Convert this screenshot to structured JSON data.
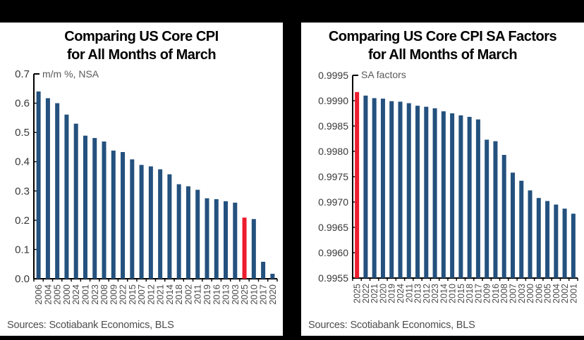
{
  "canvas": {
    "background": "#000000",
    "panel_background": "#ffffff"
  },
  "colors": {
    "bar_navy": "#24517e",
    "bar_highlight_red": "#ed1c2f",
    "axis": "#000000",
    "ytick_label": "#383838",
    "xtick_label": "#4a4a4a",
    "unit_label": "#595959",
    "title_text": "#000000",
    "source_text": "#4d4d4d"
  },
  "chart_data": [
    {
      "type": "bar",
      "title_lines": [
        "Comparing US Core CPI",
        "for All Months of March"
      ],
      "unit_label": "m/m %, NSA",
      "ylabel": "m/m %, NSA",
      "xlabel": "",
      "ylim": [
        0.0,
        0.7
      ],
      "ytick_labels": [
        "0.7",
        "0.6",
        "0.5",
        "0.4",
        "0.3",
        "0.2",
        "0.1",
        "0.0"
      ],
      "grid": false,
      "legend": "none",
      "categories": [
        "2006",
        "2004",
        "2005",
        "2000",
        "2024",
        "2001",
        "2023",
        "2008",
        "2009",
        "2022",
        "2015",
        "2007",
        "2012",
        "2021",
        "2014",
        "2018",
        "2002",
        "2011",
        "2019",
        "2016",
        "2013",
        "2003",
        "2025",
        "2010",
        "2017",
        "2020"
      ],
      "values": [
        0.64,
        0.617,
        0.6,
        0.561,
        0.53,
        0.489,
        0.481,
        0.469,
        0.438,
        0.433,
        0.408,
        0.389,
        0.384,
        0.374,
        0.357,
        0.323,
        0.316,
        0.304,
        0.275,
        0.272,
        0.265,
        0.26,
        0.209,
        0.204,
        0.058,
        0.017
      ],
      "highlight_category": "2025",
      "source": "Sources: Scotiabank Economics, BLS"
    },
    {
      "type": "bar",
      "title_lines": [
        "Comparing US Core CPI SA Factors",
        "for All Months of March"
      ],
      "unit_label": "SA factors",
      "ylabel": "SA factors",
      "xlabel": "",
      "ylim": [
        0.9955,
        0.9995
      ],
      "ytick_labels": [
        "0.9995",
        "0.9990",
        "0.9985",
        "0.9980",
        "0.9975",
        "0.9970",
        "0.9965",
        "0.9960",
        "0.9955"
      ],
      "grid": false,
      "legend": "none",
      "categories": [
        "2025",
        "2022",
        "2021",
        "2020",
        "2019",
        "2024",
        "2011",
        "2013",
        "2012",
        "2023",
        "2014",
        "2010",
        "2015",
        "2018",
        "2017",
        "2009",
        "2016",
        "2008",
        "2007",
        "2003",
        "2000",
        "2006",
        "2005",
        "2004",
        "2002",
        "2001"
      ],
      "values": [
        0.99917,
        0.9991,
        0.99905,
        0.99904,
        0.99899,
        0.99898,
        0.99895,
        0.9989,
        0.99888,
        0.99885,
        0.99879,
        0.99875,
        0.99871,
        0.99868,
        0.99863,
        0.99823,
        0.9982,
        0.99793,
        0.99758,
        0.99742,
        0.99723,
        0.99708,
        0.99702,
        0.99695,
        0.99687,
        0.99677
      ],
      "highlight_category": "2025",
      "source": "Sources: Scotiabank Economics, BLS"
    }
  ]
}
